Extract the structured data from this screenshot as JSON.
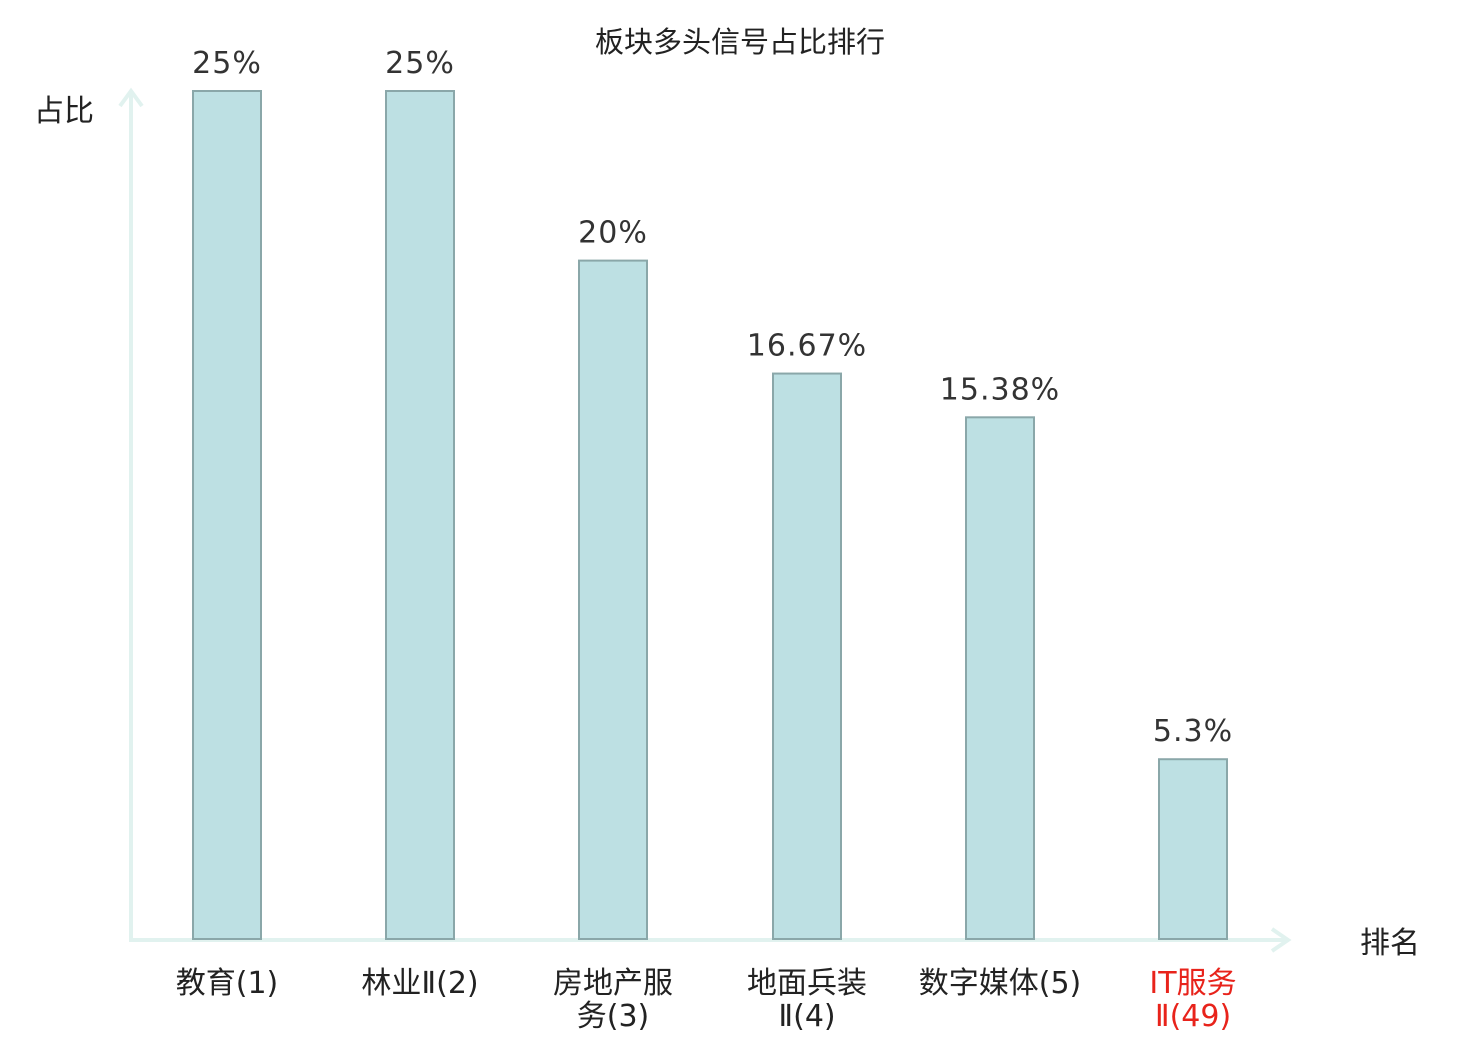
{
  "chart_data": {
    "type": "bar",
    "title": "板块多头信号占比排行",
    "xlabel": "排名",
    "ylabel": "占比",
    "categories": [
      [
        "教育(1)"
      ],
      [
        "林业Ⅱ(2)"
      ],
      [
        "房地产服",
        "务(3)"
      ],
      [
        "地面兵装",
        "Ⅱ(4)"
      ],
      [
        "数字媒体(5)"
      ],
      [
        "IT服务",
        "Ⅱ(49)"
      ]
    ],
    "values": [
      25,
      25,
      20,
      16.67,
      15.38,
      5.3
    ],
    "value_labels": [
      "25%",
      "25%",
      "20%",
      "16.67%",
      "15.38%",
      "5.3%"
    ],
    "highlight_index": 5,
    "ylim": [
      0,
      25
    ],
    "grid": false,
    "colors": {
      "bar_fill": "#bde0e3",
      "bar_stroke": "#8aa7a9",
      "axis": "#e1f2ef",
      "text": "#222222",
      "highlight": "#e8231b"
    }
  }
}
